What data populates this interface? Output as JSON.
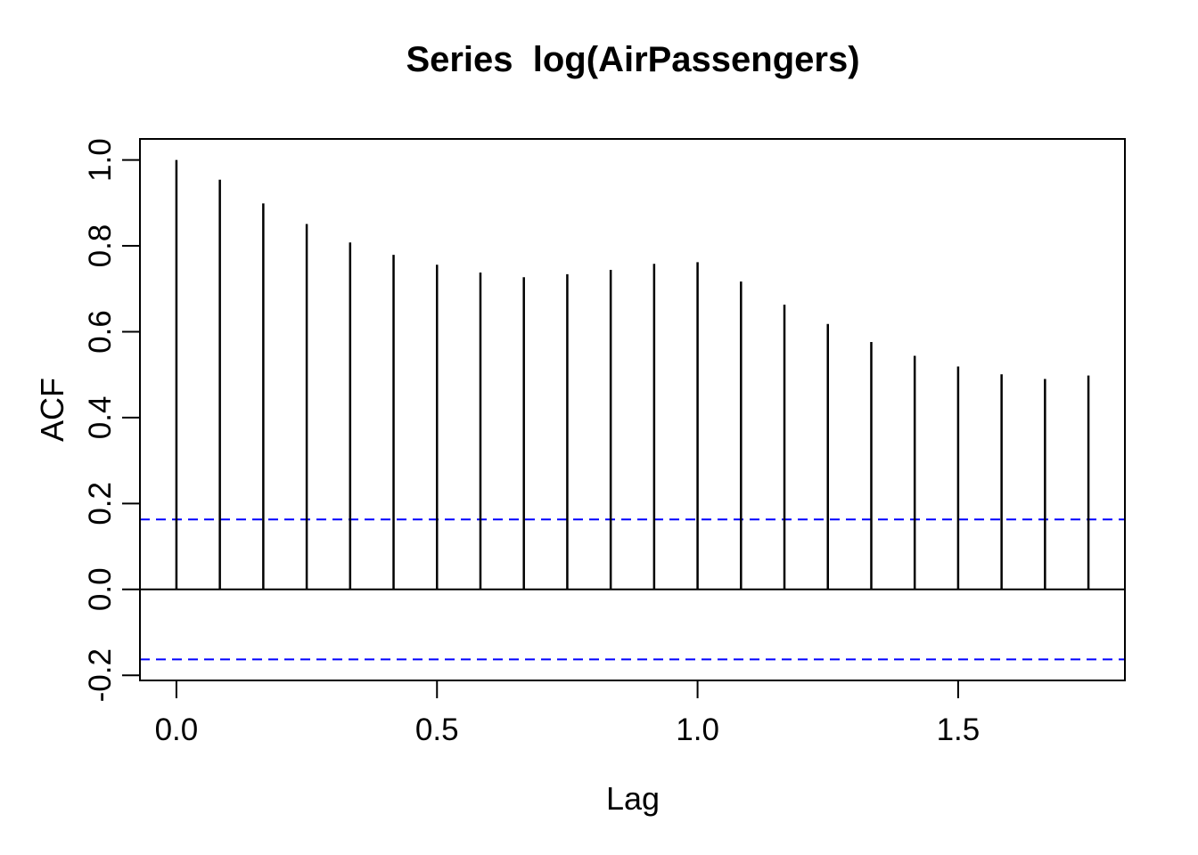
{
  "chart_data": {
    "type": "stem",
    "subtype": "autocorrelation-function",
    "title": "Series  log(AirPassengers)",
    "xlabel": "Lag",
    "ylabel": "ACF",
    "x_ticks": [
      0.0,
      0.5,
      1.0,
      1.5
    ],
    "x_tick_labels": [
      "0.0",
      "0.5",
      "1.0",
      "1.5"
    ],
    "y_ticks": [
      -0.2,
      0.0,
      0.2,
      0.4,
      0.6,
      0.8,
      1.0
    ],
    "y_tick_labels": [
      "-0.2",
      "0.0",
      "0.2",
      "0.4",
      "0.6",
      "0.8",
      "1.0"
    ],
    "xlim": [
      -0.07,
      1.82
    ],
    "ylim": [
      -0.212,
      1.049
    ],
    "lag_step_years": 0.0833333,
    "lags_months": [
      0,
      1,
      2,
      3,
      4,
      5,
      6,
      7,
      8,
      9,
      10,
      11,
      12,
      13,
      14,
      15,
      16,
      17,
      18,
      19,
      20,
      21
    ],
    "acf_values": [
      1.0,
      0.954,
      0.899,
      0.851,
      0.808,
      0.779,
      0.756,
      0.738,
      0.727,
      0.734,
      0.744,
      0.758,
      0.762,
      0.717,
      0.663,
      0.618,
      0.576,
      0.544,
      0.519,
      0.501,
      0.49,
      0.498
    ],
    "zero_line": 0.0,
    "confidence_upper": 0.163,
    "confidence_lower": -0.163,
    "grid": false,
    "legend": null,
    "colors": {
      "series": "#000000",
      "axis": "#000000",
      "confidence": "#0000FF",
      "background": "#FFFFFF"
    },
    "line_styles": {
      "confidence": "dashed"
    }
  }
}
